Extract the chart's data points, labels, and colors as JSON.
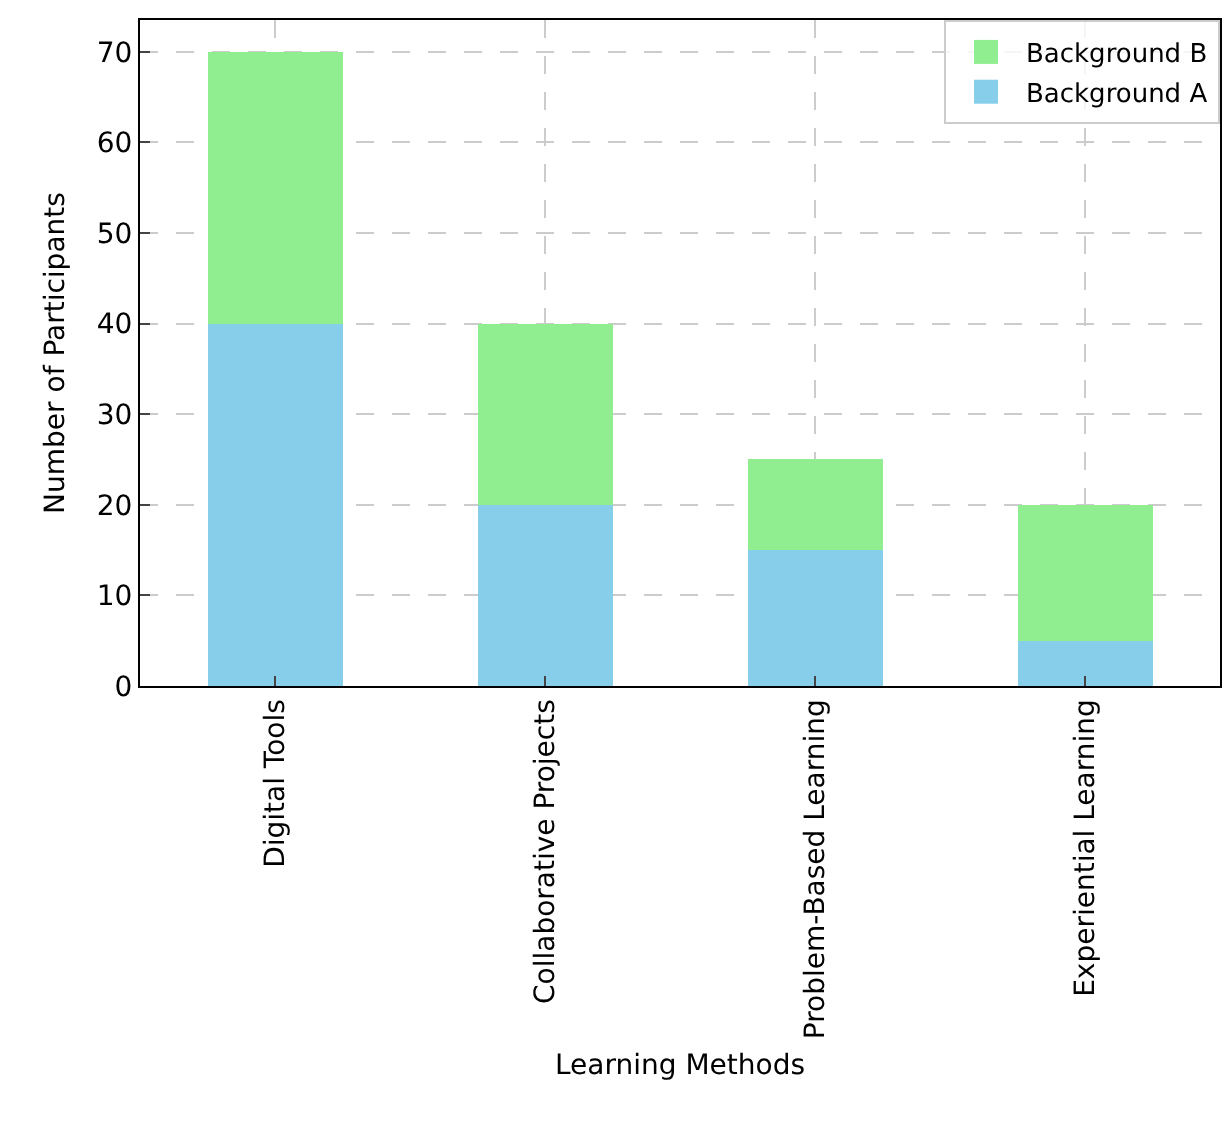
{
  "chart_data": {
    "type": "bar",
    "stacked": true,
    "xlabel": "Learning Methods",
    "ylabel": "Number of Participants",
    "categories": [
      "Digital Tools",
      "Collaborative Projects",
      "Problem-Based Learning",
      "Experiential Learning"
    ],
    "series": [
      {
        "name": "Background A",
        "color": "#87ceeb",
        "values": [
          40,
          20,
          15,
          5
        ]
      },
      {
        "name": "Background B",
        "color": "#90ee90",
        "values": [
          30,
          20,
          10,
          15
        ]
      }
    ],
    "ylim": [
      0,
      73.5
    ],
    "yticks": [
      0,
      10,
      20,
      30,
      40,
      50,
      60,
      70
    ],
    "grid": true,
    "legend": "top right"
  }
}
